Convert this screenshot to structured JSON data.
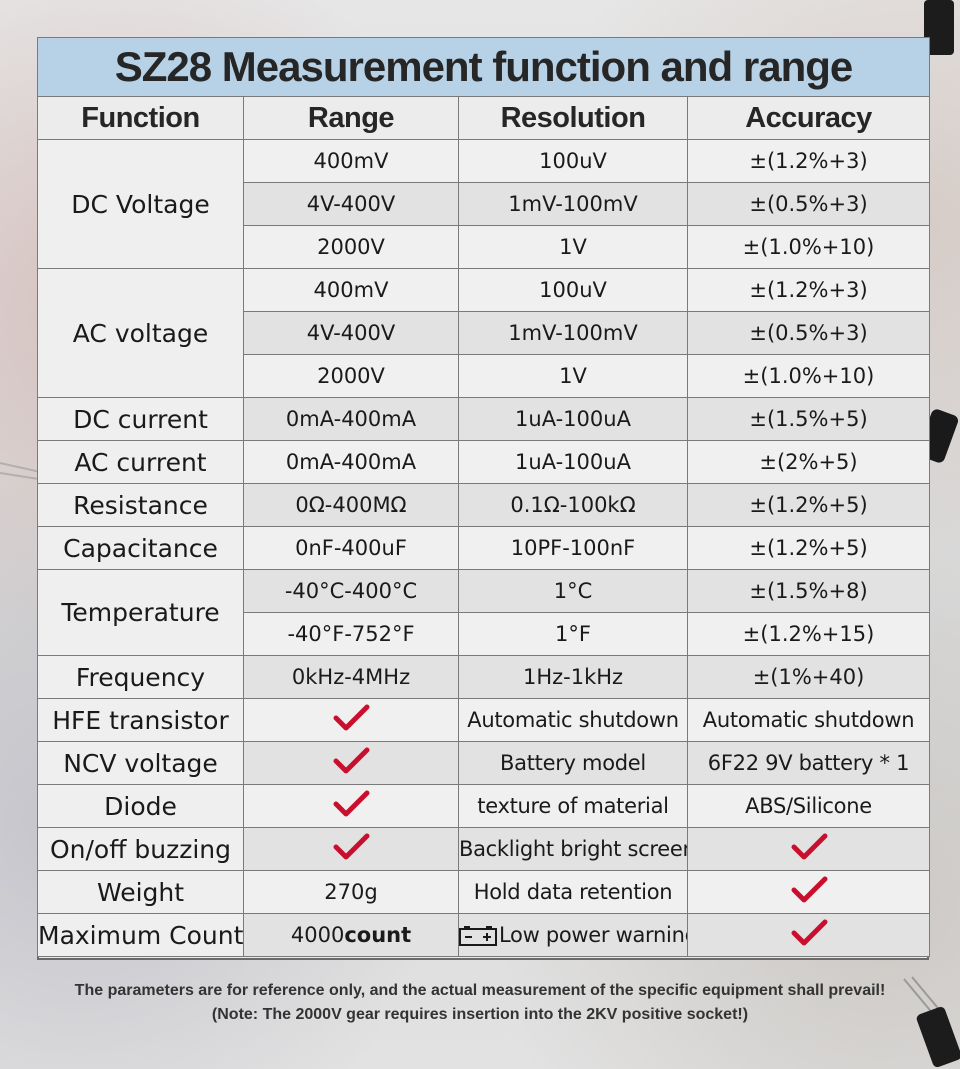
{
  "title": "SZ28 Measurement function and range",
  "columns": [
    "Function",
    "Range",
    "Resolution",
    "Accuracy"
  ],
  "rows": {
    "dc_voltage": {
      "label": "DC Voltage",
      "items": [
        {
          "range": "400mV",
          "resolution": "100uV",
          "accuracy": "±(1.2%+3)"
        },
        {
          "range": "4V-400V",
          "resolution": "1mV-100mV",
          "accuracy": "±(0.5%+3)"
        },
        {
          "range": "2000V",
          "resolution": "1V",
          "accuracy": "±(1.0%+10)"
        }
      ]
    },
    "ac_voltage": {
      "label": "AC voltage",
      "items": [
        {
          "range": "400mV",
          "resolution": "100uV",
          "accuracy": "±(1.2%+3)"
        },
        {
          "range": "4V-400V",
          "resolution": "1mV-100mV",
          "accuracy": "±(0.5%+3)"
        },
        {
          "range": "2000V",
          "resolution": "1V",
          "accuracy": "±(1.0%+10)"
        }
      ]
    },
    "dc_current": {
      "label": "DC current",
      "range": "0mA-400mA",
      "resolution": "1uA-100uA",
      "accuracy": "±(1.5%+5)"
    },
    "ac_current": {
      "label": "AC current",
      "range": "0mA-400mA",
      "resolution": "1uA-100uA",
      "accuracy": "±(2%+5)"
    },
    "resistance": {
      "label": "Resistance",
      "range": "0Ω-400MΩ",
      "resolution": "0.1Ω-100kΩ",
      "accuracy": "±(1.2%+5)"
    },
    "capacitance": {
      "label": "Capacitance",
      "range": "0nF-400uF",
      "resolution": "10PF-100nF",
      "accuracy": "±(1.2%+5)"
    },
    "temperature": {
      "label": "Temperature",
      "items": [
        {
          "range": "-40°C-400°C",
          "resolution": "1°C",
          "accuracy": "±(1.5%+8)"
        },
        {
          "range": "-40°F-752°F",
          "resolution": "1°F",
          "accuracy": "±(1.2%+15)"
        }
      ]
    },
    "frequency": {
      "label": "Frequency",
      "range": "0kHz-4MHz",
      "resolution": "1Hz-1kHz",
      "accuracy": "±(1%+40)"
    },
    "hfe": {
      "label": "HFE transistor",
      "feature": "Automatic shutdown",
      "value": "Automatic shutdown"
    },
    "ncv": {
      "label": "NCV voltage",
      "feature": "Battery model",
      "value": "6F22 9V battery * 1"
    },
    "diode": {
      "label": "Diode",
      "feature": "texture of material",
      "value": "ABS/Silicone"
    },
    "buzzing": {
      "label": "On/off buzzing",
      "feature": "Backlight bright screen"
    },
    "weight": {
      "label": "Weight",
      "value": "270g",
      "feature": "Hold data retention"
    },
    "max_count": {
      "label": "Maximum Count",
      "value_num": "4000",
      "value_unit": "count",
      "feature": "Low power warning"
    }
  },
  "footer": {
    "line1": "The parameters are for reference only, and the actual measurement of the specific equipment shall prevail!",
    "line2": "(Note: The 2000V gear requires insertion into the 2KV positive socket!)"
  },
  "colors": {
    "check": "#c8102e",
    "title_bg": "#b7d1e7"
  },
  "icons": {
    "check": "checkmark-icon",
    "battery": "battery-icon"
  }
}
